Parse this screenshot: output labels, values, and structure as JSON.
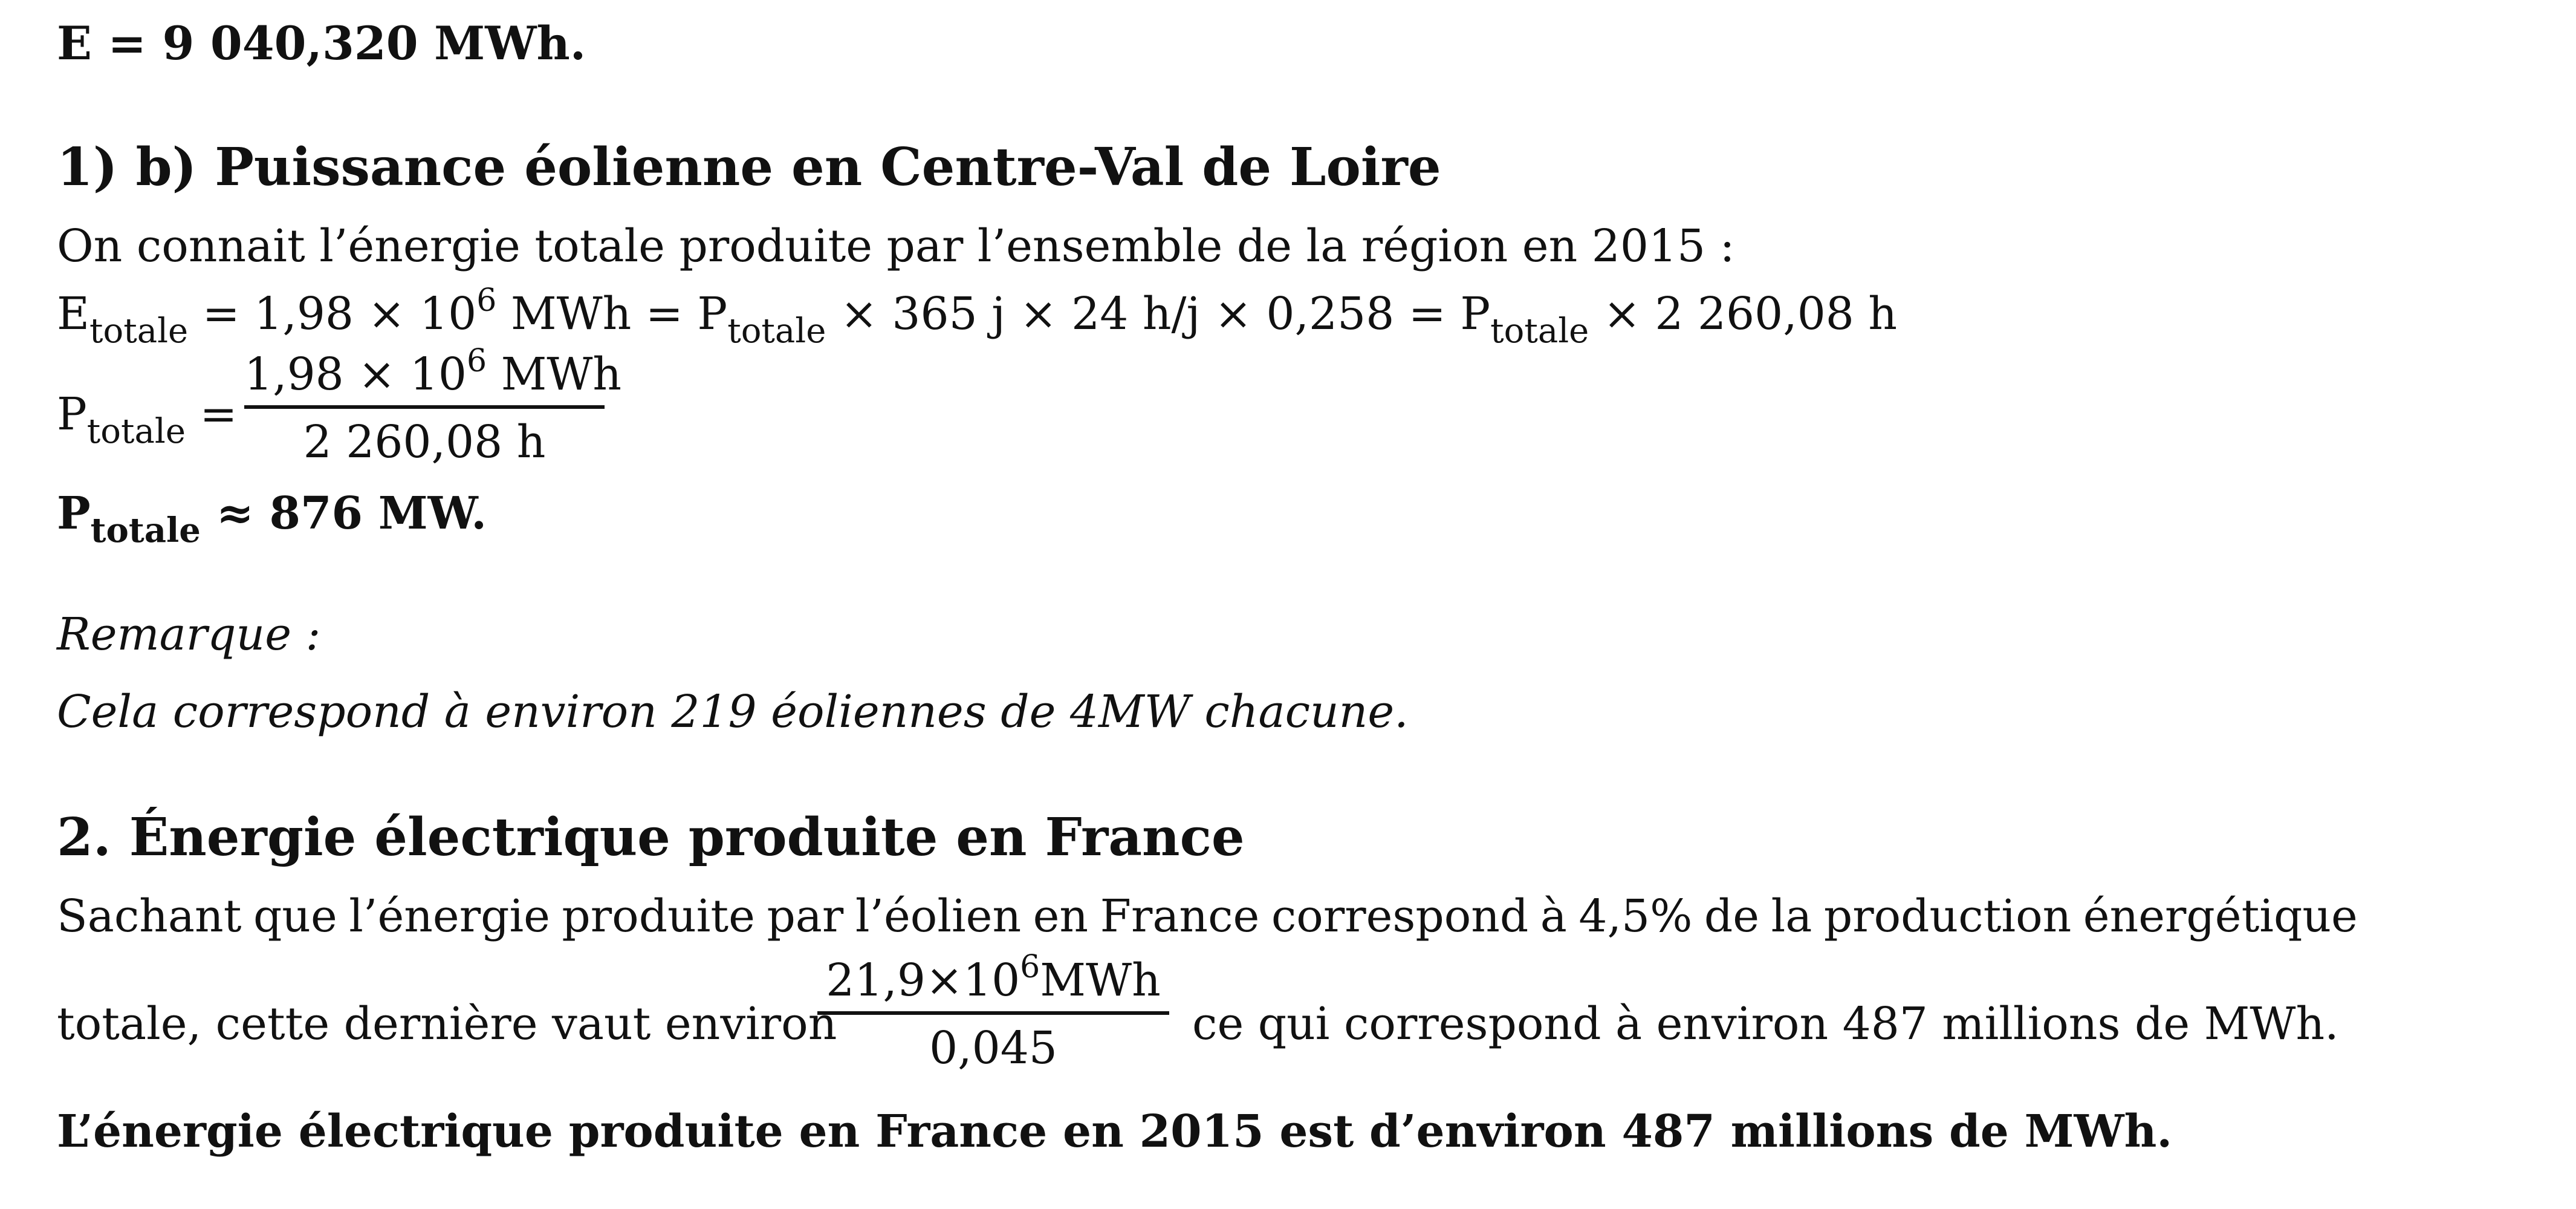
{
  "line1": "E = 9 040,320 MWh.",
  "section1b": {
    "heading": "1) b)  Puissance éolienne en Centre-Val de Loire",
    "intro": "On connait l’énergie totale produite par l’ensemble de la région en 2015 :",
    "eq1": {
      "E": "E",
      "sub_totale": "totale",
      "part1": " = 1,98 × 10",
      "exp6": "6",
      "part2": " MWh = P",
      "part3": " × 365 j × 24 h/j × 0,258 =  P",
      "part4": "  × 2 260,08  h"
    },
    "eq2": {
      "P": "P",
      "sub_totale": "totale",
      "equals": " =",
      "num_a": "1,98 × 10",
      "num_exp": "6",
      "num_b": " MWh",
      "den": "2 260,08  h"
    },
    "result": {
      "P": "P",
      "sub_totale": "totale",
      "value": "  ≈ 876 MW."
    },
    "remark_label": "Remarque :",
    "remark_text": "Cela correspond à environ 219 éoliennes de 4MW chacune."
  },
  "section2": {
    "heading": "2.  Énergie électrique produite en France",
    "para_line1_words": [
      "Sachant",
      "que",
      "l’énergie",
      "produite",
      "par",
      "l’éolien",
      "en",
      "France",
      "correspond",
      "à",
      "4,5%",
      "de",
      "la",
      "production",
      "énergétique"
    ],
    "para_line2_before": "totale, cette dernière vaut environ",
    "frac_num_a": "21,9×10",
    "frac_num_exp": "6",
    "frac_num_b": "MWh",
    "frac_den": "0,045",
    "para_line2_after": "ce qui correspond à environ 487 millions de MWh.",
    "conclusion": "L’énergie électrique produite en France en 2015 est d’environ 487 millions de MWh."
  }
}
